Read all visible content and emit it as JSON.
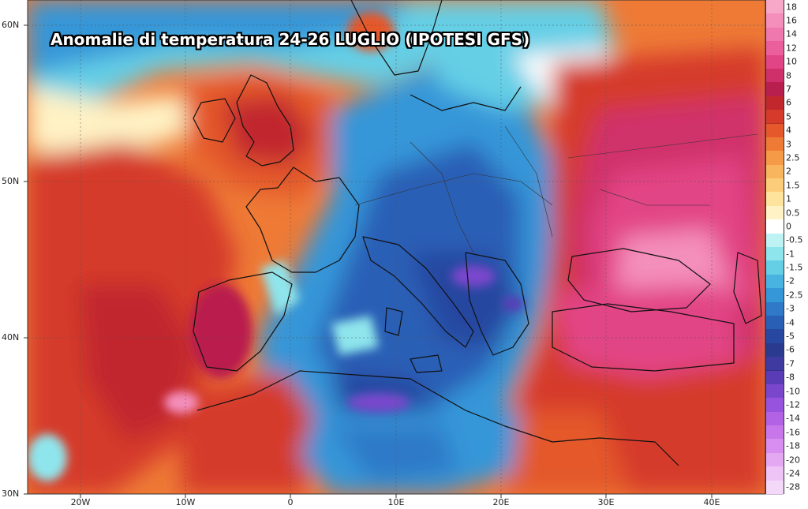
{
  "title": "Anomalie di temperatura 24-26 LUGLIO (IPOTESI GFS)",
  "lat_labels": [
    "60N",
    "50N",
    "40N",
    "30N"
  ],
  "lon_labels": [
    "20W",
    "10W",
    "0",
    "10E",
    "20E",
    "30E",
    "40E"
  ],
  "legend": {
    "values": [
      "18",
      "16",
      "14",
      "12",
      "10",
      "8",
      "7",
      "6",
      "5",
      "4",
      "3",
      "2.5",
      "2",
      "1.5",
      "1",
      "0.5",
      "0",
      "-0.5",
      "-1",
      "-1.5",
      "-2",
      "-2.5",
      "-3",
      "-4",
      "-5",
      "-6",
      "-7",
      "-8",
      "-10",
      "-12",
      "-14",
      "-16",
      "-18",
      "-20",
      "-24",
      "-28"
    ],
    "colors": [
      "#f7a7c8",
      "#f48fbc",
      "#ef78ae",
      "#ea5f9c",
      "#e24585",
      "#d0306a",
      "#b91f4e",
      "#c1272d",
      "#d53a2a",
      "#e4582b",
      "#ee7a36",
      "#f59a47",
      "#f8b55e",
      "#fbcd7a",
      "#fde39c",
      "#fff2c4",
      "#ffffff",
      "#bff3f3",
      "#8fe5ec",
      "#65cfe6",
      "#48b3e0",
      "#3596d8",
      "#2f79c8",
      "#2a5fb6",
      "#2747a0",
      "#2a3a8e",
      "#3f3aa0",
      "#5a3db6",
      "#7a46cc",
      "#9753dd",
      "#b262e5",
      "#c777ea",
      "#d78ef0",
      "#e4a8f3",
      "#eec3f6",
      "#f4d8f8"
    ]
  },
  "colors": {
    "warm_strong": "#c1272d",
    "warm": "#e4582b",
    "warm_light": "#f59a47",
    "neutral": "#fde39c",
    "cool_light": "#8fe5ec",
    "cool": "#3596d8",
    "cool_strong": "#2a5fb6",
    "cold": "#5a3db6",
    "hot_pink": "#e24585",
    "pink": "#f48fbc",
    "border": "#111111"
  }
}
